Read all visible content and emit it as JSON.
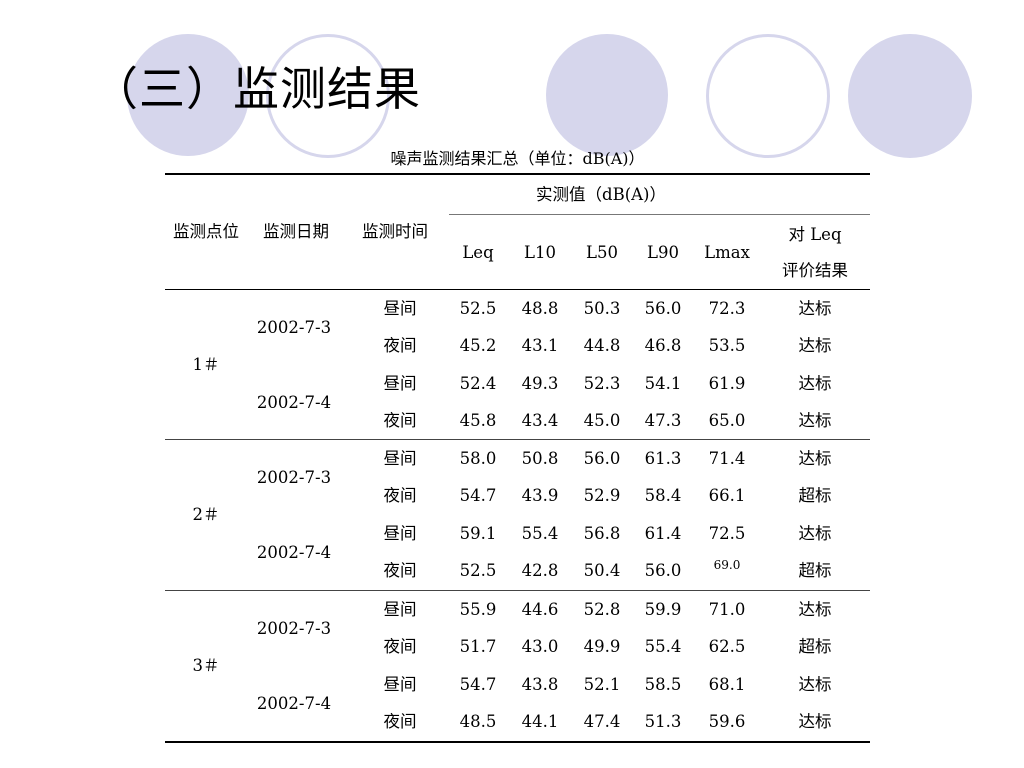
{
  "title": "（三）监测结果",
  "caption": "噪声监测结果汇总（单位：dB(A)）",
  "header": {
    "location": "监测点位",
    "date": "监测日期",
    "time": "监测时间",
    "measured_group": "实测值（dB(A)）",
    "leq": "Leq",
    "l10": "L10",
    "l50": "L50",
    "l90": "L90",
    "lmax": "Lmax",
    "eval_line1": "对 Leq",
    "eval_line2": "评价结果"
  },
  "groups": [
    {
      "location": "1＃",
      "dates": [
        "2002-7-3",
        "2002-7-4"
      ],
      "rows": [
        {
          "time": "昼间",
          "leq": "52.5",
          "l10": "48.8",
          "l50": "50.3",
          "l90": "56.0",
          "lmax": "72.3",
          "result": "达标"
        },
        {
          "time": "夜间",
          "leq": "45.2",
          "l10": "43.1",
          "l50": "44.8",
          "l90": "46.8",
          "lmax": "53.5",
          "result": "达标"
        },
        {
          "time": "昼间",
          "leq": "52.4",
          "l10": "49.3",
          "l50": "52.3",
          "l90": "54.1",
          "lmax": "61.9",
          "result": "达标"
        },
        {
          "time": "夜间",
          "leq": "45.8",
          "l10": "43.4",
          "l50": "45.0",
          "l90": "47.3",
          "lmax": "65.0",
          "result": "达标"
        }
      ]
    },
    {
      "location": "2＃",
      "dates": [
        "2002-7-3",
        "2002-7-4"
      ],
      "rows": [
        {
          "time": "昼间",
          "leq": "58.0",
          "l10": "50.8",
          "l50": "56.0",
          "l90": "61.3",
          "lmax": "71.4",
          "result": "达标"
        },
        {
          "time": "夜间",
          "leq": "54.7",
          "l10": "43.9",
          "l50": "52.9",
          "l90": "58.4",
          "lmax": "66.1",
          "result": "超标"
        },
        {
          "time": "昼间",
          "leq": "59.1",
          "l10": "55.4",
          "l50": "56.8",
          "l90": "61.4",
          "lmax": "72.5",
          "result": "达标"
        },
        {
          "time": "夜间",
          "leq": "52.5",
          "l10": "42.8",
          "l50": "50.4",
          "l90": "56.0",
          "lmax": "69.0",
          "result": "超标"
        }
      ]
    },
    {
      "location": "3＃",
      "dates": [
        "2002-7-3",
        "2002-7-4"
      ],
      "rows": [
        {
          "time": "昼间",
          "leq": "55.9",
          "l10": "44.6",
          "l50": "52.8",
          "l90": "59.9",
          "lmax": "71.0",
          "result": "达标"
        },
        {
          "time": "夜间",
          "leq": "51.7",
          "l10": "43.0",
          "l50": "49.9",
          "l90": "55.4",
          "lmax": "62.5",
          "result": "超标"
        },
        {
          "time": "昼间",
          "leq": "54.7",
          "l10": "43.8",
          "l50": "52.1",
          "l90": "58.5",
          "lmax": "68.1",
          "result": "达标"
        },
        {
          "time": "夜间",
          "leq": "48.5",
          "l10": "44.1",
          "l50": "47.4",
          "l90": "51.3",
          "lmax": "59.6",
          "result": "达标"
        }
      ]
    }
  ]
}
